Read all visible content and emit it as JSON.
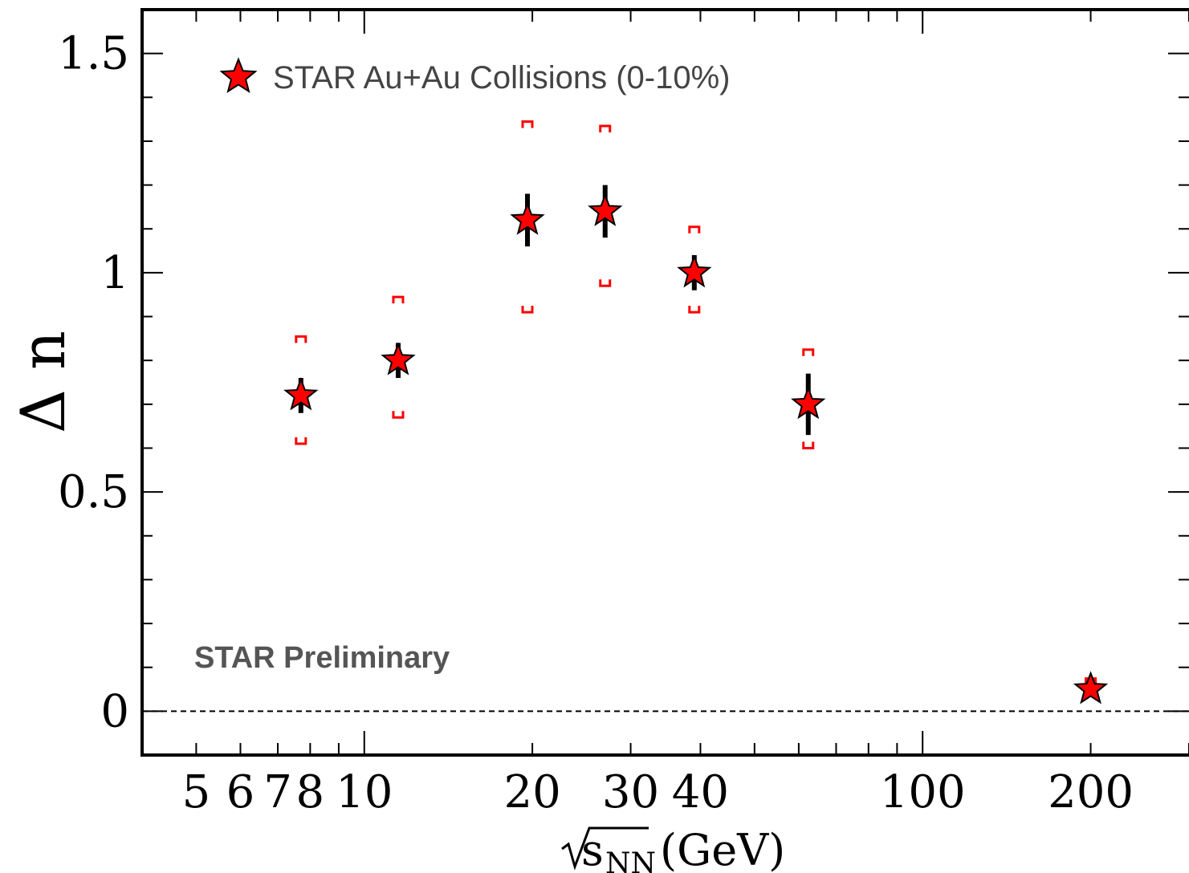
{
  "chart_data": {
    "type": "scatter",
    "title": "",
    "xlabel_symbol": "s",
    "xlabel_subscript": "NN",
    "xlabel_unit": "(GeV)",
    "ylabel": "Δ n",
    "xscale": "log",
    "xlim": [
      4,
      300
    ],
    "ylim": [
      -0.1,
      1.6
    ],
    "grid": false,
    "legend": {
      "position": "top-left",
      "label": "STAR Au+Au Collisions (0-10%)"
    },
    "annotation": "STAR Preliminary",
    "x_tick_labels": [
      {
        "value": 5,
        "label": "5"
      },
      {
        "value": 6,
        "label": "6"
      },
      {
        "value": 7,
        "label": "7"
      },
      {
        "value": 8,
        "label": "8"
      },
      {
        "value": 10,
        "label": "10"
      },
      {
        "value": 20,
        "label": "20"
      },
      {
        "value": 30,
        "label": "30"
      },
      {
        "value": 40,
        "label": "40"
      },
      {
        "value": 100,
        "label": "100"
      },
      {
        "value": 200,
        "label": "200"
      }
    ],
    "y_tick_labels": [
      {
        "value": 0,
        "label": "0"
      },
      {
        "value": 0.5,
        "label": "0.5"
      },
      {
        "value": 1,
        "label": "1"
      },
      {
        "value": 1.5,
        "label": "1.5"
      }
    ],
    "reference_line": 0,
    "series": [
      {
        "name": "STAR Au+Au Collisions (0-10%)",
        "color": "#ff0000",
        "points": [
          {
            "x": 7.7,
            "y": 0.72,
            "stat": 0.04,
            "sys_low": 0.61,
            "sys_high": 0.84
          },
          {
            "x": 11.5,
            "y": 0.8,
            "stat": 0.04,
            "sys_low": 0.67,
            "sys_high": 0.93
          },
          {
            "x": 19.6,
            "y": 1.12,
            "stat": 0.06,
            "sys_low": 0.91,
            "sys_high": 1.33
          },
          {
            "x": 27,
            "y": 1.14,
            "stat": 0.06,
            "sys_low": 0.97,
            "sys_high": 1.32
          },
          {
            "x": 39,
            "y": 1.0,
            "stat": 0.04,
            "sys_low": 0.91,
            "sys_high": 1.09
          },
          {
            "x": 62.4,
            "y": 0.7,
            "stat": 0.07,
            "sys_low": 0.6,
            "sys_high": 0.81
          },
          {
            "x": 200,
            "y": 0.05,
            "stat": 0.01,
            "sys_low": 0.04,
            "sys_high": 0.06
          }
        ]
      }
    ]
  }
}
